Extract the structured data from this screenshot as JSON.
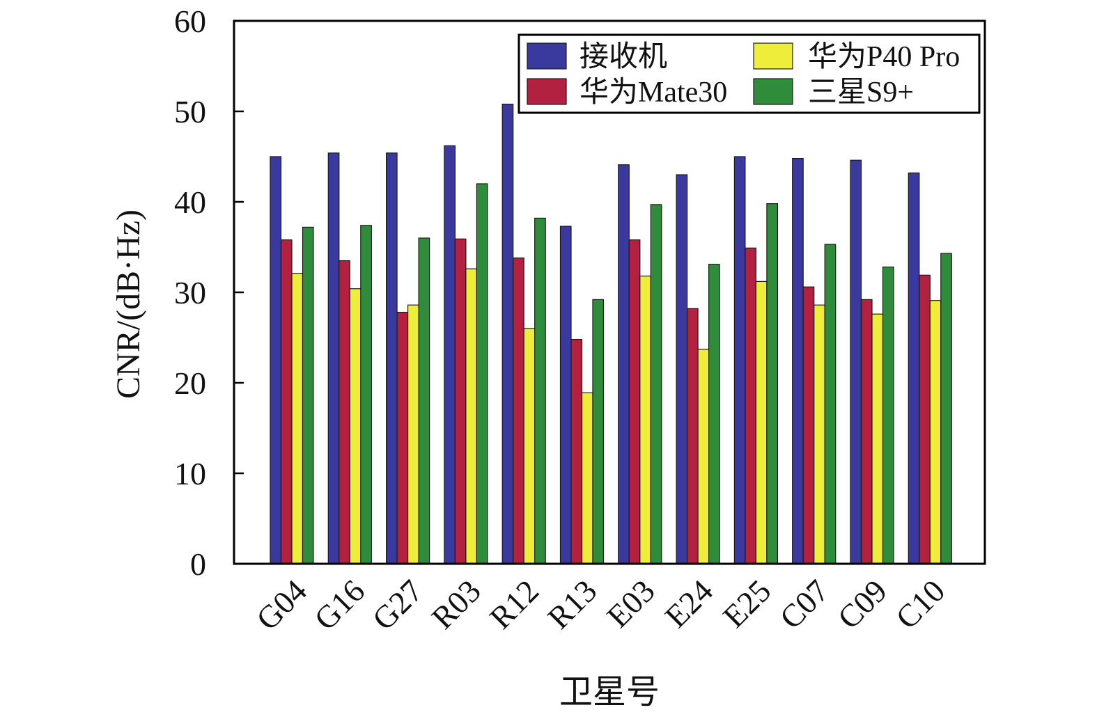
{
  "chart_data": {
    "type": "bar",
    "title": "",
    "xlabel": "卫星号",
    "ylabel": "CNR/(dB·Hz)",
    "ylim": [
      0,
      60
    ],
    "yticks": [
      "0",
      "10",
      "20",
      "30",
      "40",
      "50",
      "60"
    ],
    "grid": false,
    "legend_position": "top-right",
    "categories": [
      "G04",
      "G16",
      "G27",
      "R03",
      "R12",
      "R13",
      "E03",
      "E24",
      "E25",
      "C07",
      "C09",
      "C10"
    ],
    "series": [
      {
        "name": "接收机",
        "color": "#3a3a9e",
        "values": [
          45.0,
          45.4,
          45.4,
          46.2,
          50.8,
          37.3,
          44.1,
          43.0,
          45.0,
          44.8,
          44.6,
          43.2
        ]
      },
      {
        "name": "华为Mate30",
        "color": "#b22240",
        "values": [
          35.8,
          33.5,
          27.8,
          35.9,
          33.8,
          24.8,
          35.8,
          28.2,
          34.9,
          30.6,
          29.2,
          31.9
        ]
      },
      {
        "name": "华为P40 Pro",
        "color": "#eded3a",
        "values": [
          32.1,
          30.4,
          28.6,
          32.6,
          26.0,
          18.9,
          31.8,
          23.7,
          31.2,
          28.6,
          27.6,
          29.1
        ]
      },
      {
        "name": "三星S9+",
        "color": "#2e8c3a",
        "values": [
          37.2,
          37.4,
          36.0,
          42.0,
          38.2,
          29.2,
          39.7,
          33.1,
          39.8,
          35.3,
          32.8,
          34.3
        ]
      }
    ]
  }
}
